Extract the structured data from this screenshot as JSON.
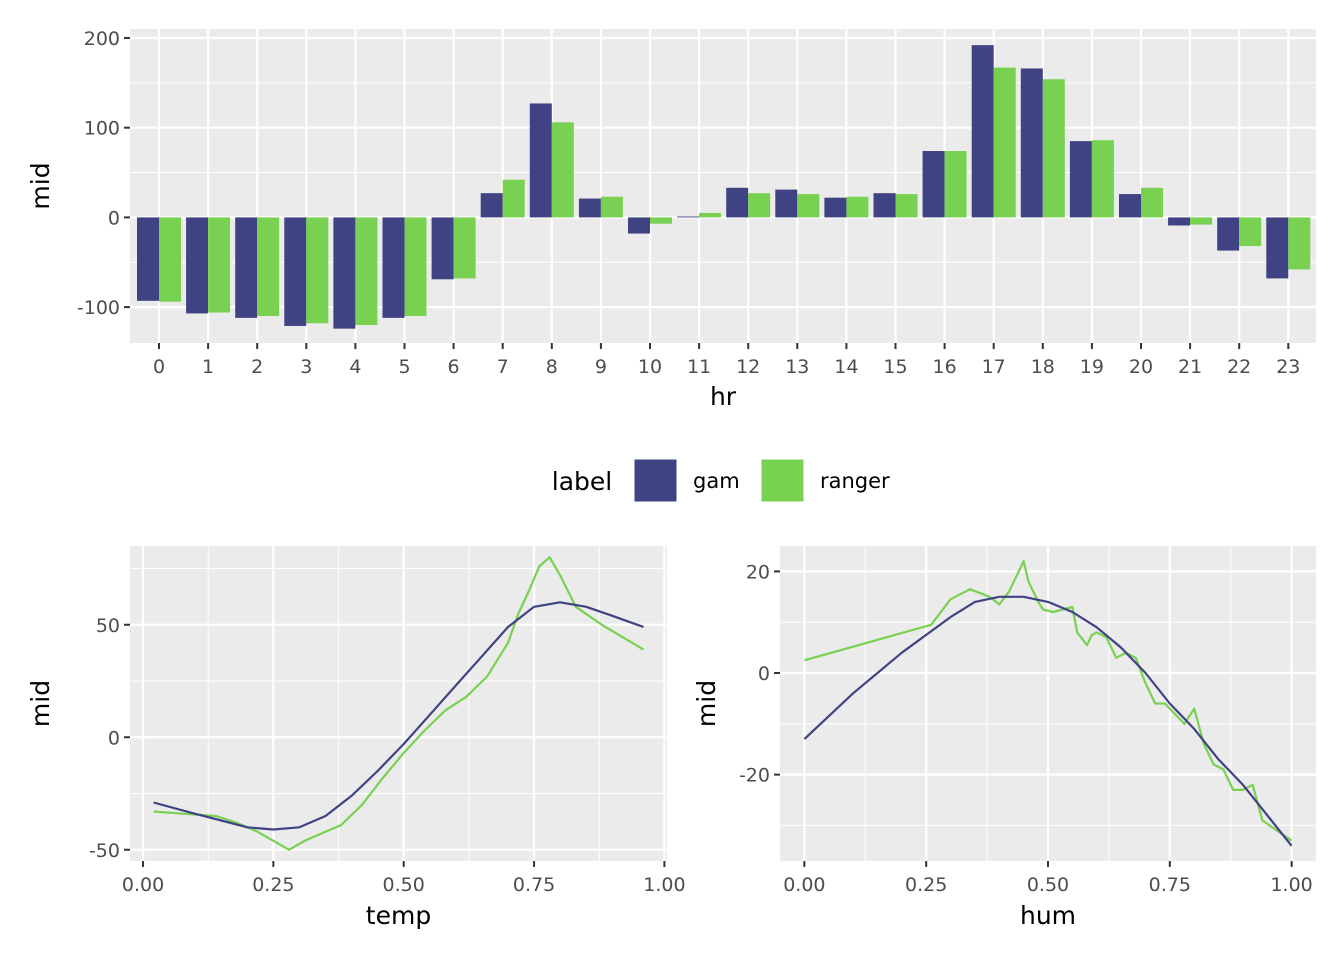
{
  "colors": {
    "gam": "#3f4383",
    "ranger": "#79d151",
    "panel_bg": "#ebebeb",
    "grid": "#ffffff"
  },
  "legend": {
    "title": "label",
    "items": [
      {
        "name": "gam",
        "color": "#3f4383"
      },
      {
        "name": "ranger",
        "color": "#79d151"
      }
    ]
  },
  "chart_data": [
    {
      "type": "bar",
      "xlabel": "hr",
      "ylabel": "mid",
      "ylim": [
        -140,
        210
      ],
      "yticks": [
        -100,
        0,
        100,
        200
      ],
      "categories": [
        "0",
        "1",
        "2",
        "3",
        "4",
        "5",
        "6",
        "7",
        "8",
        "9",
        "10",
        "11",
        "12",
        "13",
        "14",
        "15",
        "16",
        "17",
        "18",
        "19",
        "20",
        "21",
        "22",
        "23"
      ],
      "series": [
        {
          "name": "gam",
          "values": [
            -93,
            -107,
            -112,
            -121,
            -124,
            -112,
            -69,
            27,
            127,
            21,
            -18,
            1,
            33,
            31,
            22,
            27,
            74,
            192,
            166,
            85,
            26,
            -9,
            -37,
            -68
          ]
        },
        {
          "name": "ranger",
          "values": [
            -94,
            -106,
            -110,
            -118,
            -120,
            -110,
            -68,
            42,
            106,
            23,
            -7,
            5,
            27,
            26,
            23,
            26,
            74,
            167,
            154,
            86,
            33,
            -8,
            -32,
            -58
          ]
        }
      ]
    },
    {
      "type": "line",
      "xlabel": "temp",
      "ylabel": "mid",
      "xlim": [
        -0.025,
        1.005
      ],
      "ylim": [
        -55,
        85
      ],
      "xticks": [
        "0.00",
        "0.25",
        "0.50",
        "0.75",
        "1.00"
      ],
      "xtick_values": [
        0,
        0.25,
        0.5,
        0.75,
        1.0
      ],
      "yticks": [
        -50,
        0,
        50
      ],
      "series": [
        {
          "name": "gam",
          "x": [
            0.02,
            0.1,
            0.15,
            0.2,
            0.25,
            0.3,
            0.35,
            0.4,
            0.45,
            0.5,
            0.55,
            0.6,
            0.65,
            0.7,
            0.75,
            0.8,
            0.85,
            0.9,
            0.96
          ],
          "y": [
            -29,
            -34,
            -37,
            -40,
            -41,
            -40,
            -35,
            -26,
            -15,
            -3,
            10,
            23,
            36,
            49,
            58,
            60,
            58,
            54,
            49
          ]
        },
        {
          "name": "ranger",
          "x": [
            0.02,
            0.08,
            0.14,
            0.18,
            0.22,
            0.25,
            0.28,
            0.31,
            0.34,
            0.38,
            0.42,
            0.46,
            0.5,
            0.54,
            0.58,
            0.62,
            0.66,
            0.7,
            0.72,
            0.74,
            0.76,
            0.78,
            0.8,
            0.83,
            0.88,
            0.96
          ],
          "y": [
            -33,
            -34,
            -35,
            -38,
            -42,
            -46,
            -50,
            -46,
            -43,
            -39,
            -30,
            -18,
            -7,
            3,
            12,
            18,
            27,
            42,
            55,
            65,
            76,
            80,
            72,
            58,
            50,
            39
          ]
        }
      ]
    },
    {
      "type": "line",
      "xlabel": "hum",
      "ylabel": "mid",
      "xlim": [
        -0.05,
        1.05
      ],
      "ylim": [
        -37,
        25
      ],
      "xticks": [
        "0.00",
        "0.25",
        "0.50",
        "0.75",
        "1.00"
      ],
      "xtick_values": [
        0,
        0.25,
        0.5,
        0.75,
        1.0
      ],
      "yticks": [
        -20,
        0,
        20
      ],
      "series": [
        {
          "name": "gam",
          "x": [
            0,
            0.1,
            0.2,
            0.3,
            0.35,
            0.4,
            0.45,
            0.5,
            0.55,
            0.6,
            0.65,
            0.7,
            0.75,
            0.8,
            0.85,
            0.9,
            0.95,
            1.0
          ],
          "y": [
            -13,
            -4,
            4,
            11,
            14,
            15,
            15,
            14,
            12,
            9,
            5,
            0,
            -6,
            -11,
            -17,
            -22,
            -28,
            -34
          ]
        },
        {
          "name": "ranger",
          "x": [
            0,
            0.26,
            0.3,
            0.34,
            0.38,
            0.4,
            0.42,
            0.45,
            0.46,
            0.48,
            0.49,
            0.51,
            0.53,
            0.55,
            0.56,
            0.58,
            0.59,
            0.6,
            0.62,
            0.64,
            0.66,
            0.68,
            0.7,
            0.72,
            0.74,
            0.76,
            0.78,
            0.8,
            0.82,
            0.84,
            0.86,
            0.88,
            0.9,
            0.92,
            0.94,
            1.0
          ],
          "y": [
            2.5,
            9.5,
            14.5,
            16.5,
            15,
            13.5,
            16,
            22,
            18,
            14,
            12.5,
            12,
            12.5,
            13,
            8,
            5.5,
            7.5,
            8,
            7,
            3,
            4,
            3,
            -2,
            -6,
            -6,
            -8,
            -10,
            -7,
            -14,
            -18,
            -19,
            -23,
            -23,
            -22,
            -29,
            -33
          ]
        }
      ]
    }
  ]
}
